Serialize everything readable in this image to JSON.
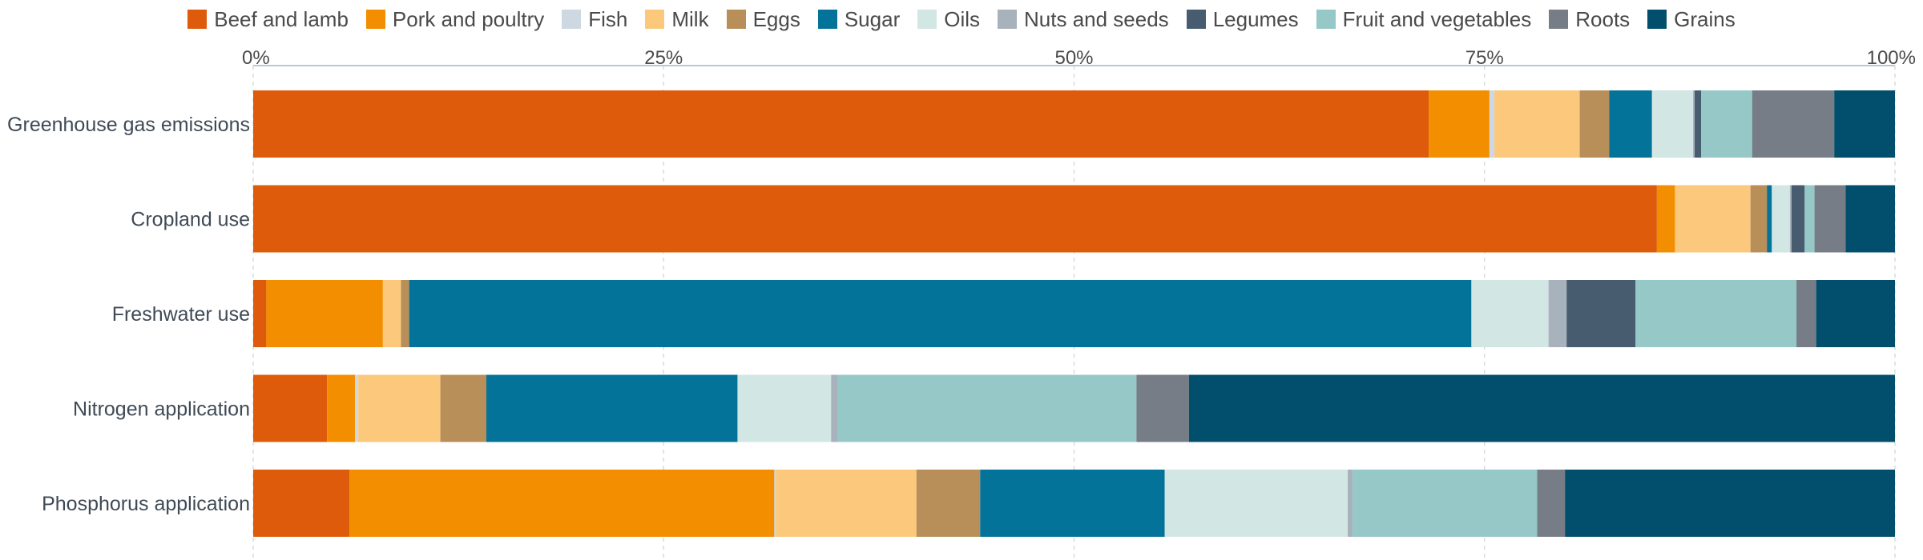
{
  "chart_data": {
    "type": "bar",
    "orientation": "horizontal",
    "stacked": true,
    "normalized": true,
    "categories": [
      "Greenhouse gas emissions",
      "Cropland use",
      "Freshwater use",
      "Nitrogen application",
      "Phosphorus application"
    ],
    "series": [
      {
        "name": "Beef and lamb",
        "color": "#dd5b0b",
        "values": [
          71.6,
          85.5,
          0.8,
          4.5,
          5.9
        ]
      },
      {
        "name": "Pork and poultry",
        "color": "#f28e00",
        "values": [
          3.7,
          1.1,
          7.1,
          1.7,
          26.0
        ]
      },
      {
        "name": "Fish",
        "color": "#ced8e3",
        "values": [
          0.3,
          0.0,
          0.0,
          0.2,
          0.1
        ]
      },
      {
        "name": "Milk",
        "color": "#fbc87c",
        "values": [
          5.2,
          4.6,
          1.1,
          5.0,
          8.6
        ]
      },
      {
        "name": "Eggs",
        "color": "#b88f58",
        "values": [
          1.8,
          1.0,
          0.5,
          2.8,
          3.9
        ]
      },
      {
        "name": "Sugar",
        "color": "#047399",
        "values": [
          2.6,
          0.3,
          64.7,
          15.3,
          11.3
        ]
      },
      {
        "name": "Oils",
        "color": "#d2e6e4",
        "values": [
          2.5,
          1.1,
          4.7,
          5.7,
          11.2
        ]
      },
      {
        "name": "Nuts and seeds",
        "color": "#a8b2bd",
        "values": [
          0.1,
          0.1,
          1.1,
          0.4,
          0.3
        ]
      },
      {
        "name": "Legumes",
        "color": "#475c6e",
        "values": [
          0.4,
          0.8,
          4.2,
          0.0,
          0.0
        ]
      },
      {
        "name": "Fruit and vegetables",
        "color": "#95c8c7",
        "values": [
          3.1,
          0.6,
          9.8,
          18.2,
          11.3
        ]
      },
      {
        "name": "Roots",
        "color": "#767d86",
        "values": [
          5.0,
          1.9,
          1.2,
          3.2,
          1.7
        ]
      },
      {
        "name": "Grains",
        "color": "#014f6c",
        "values": [
          3.7,
          3.0,
          4.8,
          43.0,
          20.2
        ]
      }
    ],
    "xlim": [
      0,
      100
    ],
    "xticks": [
      0,
      25,
      50,
      75,
      100
    ],
    "xtick_labels": [
      "0%",
      "25%",
      "50%",
      "75%",
      "100%"
    ],
    "xaxis_position": "top",
    "legend_position": "top",
    "grid": true
  }
}
